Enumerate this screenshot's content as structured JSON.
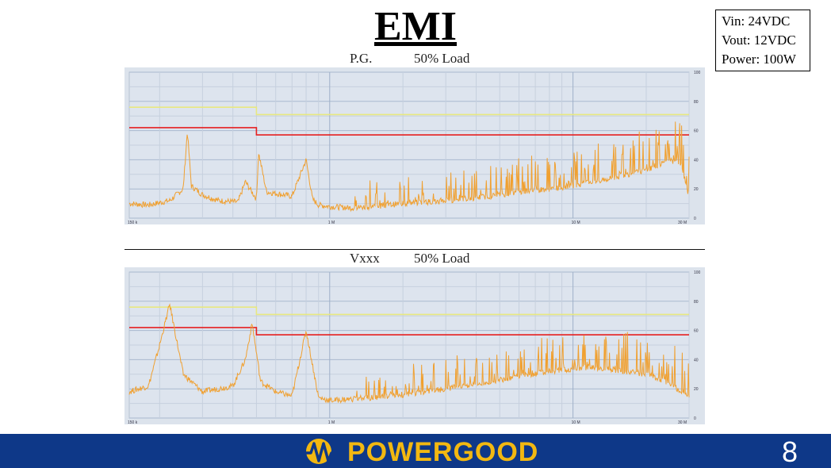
{
  "slide": {
    "title": "EMI",
    "page_number": "8",
    "specs": [
      "Vin: 24VDC",
      "Vout: 12VDC",
      "Power: 100W"
    ]
  },
  "charts": [
    {
      "label": "P.G.",
      "load": "50% Load",
      "x_ticks": [
        "150 k",
        "1 M",
        "10 M",
        "30 M"
      ],
      "y_ticks": [
        "100",
        "80",
        "60",
        "40",
        "20",
        "0"
      ]
    },
    {
      "label": "Vxxx",
      "load": "50% Load",
      "x_ticks": [
        "150 k",
        "1 M",
        "10 M",
        "30 M"
      ],
      "y_ticks": [
        "100",
        "80",
        "60",
        "40",
        "20",
        "0"
      ]
    }
  ],
  "footer": {
    "brand": "POWERGOOD"
  },
  "colors": {
    "footer_bg": "#0e3888",
    "brand": "#f2b811",
    "trace": "#f0a030",
    "limit_qp": "#e62020",
    "limit_avg": "#e8e880",
    "plot_bg": "#dce3ec"
  },
  "chart_data": [
    {
      "type": "line",
      "title": "P.G. 50% Load",
      "x_scale": "log",
      "xlim": [
        0.15,
        30
      ],
      "ylim": [
        0,
        100
      ],
      "x_ticks": [
        "150 k",
        "1 M",
        "10 M",
        "30 M"
      ],
      "series": [
        {
          "x": [
            0.15,
            0.5,
            0.5,
            30
          ],
          "y": [
            62,
            62,
            57,
            57
          ]
        },
        {
          "x": [
            0.15,
            0.5,
            0.5,
            30
          ],
          "y": [
            76,
            76,
            71,
            71
          ]
        },
        {
          "x": [
            0.15,
            0.18,
            0.22,
            0.25,
            0.26,
            0.27,
            0.3,
            0.35,
            0.42,
            0.45,
            0.5,
            0.51,
            0.55,
            0.7,
            0.8,
            0.85,
            0.9,
            1.0,
            1.2,
            1.5,
            2.0,
            3.0,
            4.0,
            5.0,
            7.0,
            10.0,
            15.0,
            20.0,
            25.0,
            28.0,
            30.0
          ],
          "y": [
            10,
            9,
            12,
            20,
            60,
            22,
            16,
            12,
            11,
            25,
            13,
            45,
            18,
            15,
            40,
            13,
            9,
            8,
            7,
            8,
            10,
            12,
            14,
            16,
            19,
            22,
            28,
            33,
            40,
            35,
            14
          ]
        }
      ]
    },
    {
      "type": "line",
      "title": "Vxxx 50% Load",
      "x_scale": "log",
      "xlim": [
        0.15,
        30
      ],
      "ylim": [
        0,
        100
      ],
      "x_ticks": [
        "150 k",
        "1 M",
        "10 M",
        "30 M"
      ],
      "series": [
        {
          "x": [
            0.15,
            0.5,
            0.5,
            30
          ],
          "y": [
            62,
            62,
            57,
            57
          ]
        },
        {
          "x": [
            0.15,
            0.5,
            0.5,
            30
          ],
          "y": [
            76,
            76,
            71,
            71
          ]
        },
        {
          "x": [
            0.15,
            0.18,
            0.2,
            0.22,
            0.25,
            0.3,
            0.4,
            0.45,
            0.48,
            0.52,
            0.6,
            0.7,
            0.8,
            0.9,
            1.0,
            1.5,
            2.0,
            3.0,
            5.0,
            8.0,
            12.0,
            20.0,
            25.0,
            30.0
          ],
          "y": [
            18,
            22,
            50,
            78,
            30,
            18,
            22,
            40,
            65,
            25,
            18,
            15,
            60,
            14,
            12,
            14,
            16,
            20,
            26,
            32,
            35,
            30,
            24,
            14
          ]
        }
      ]
    }
  ]
}
